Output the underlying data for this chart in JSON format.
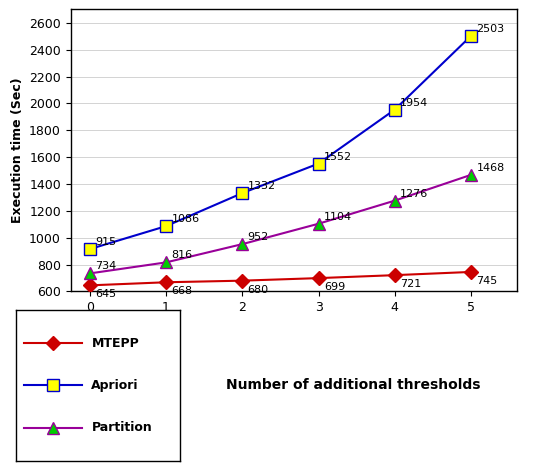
{
  "x": [
    0,
    1,
    2,
    3,
    4,
    5
  ],
  "mtepp": [
    645,
    668,
    680,
    699,
    721,
    745
  ],
  "apriori": [
    915,
    1086,
    1332,
    1552,
    1954,
    2503
  ],
  "partition": [
    734,
    816,
    952,
    1104,
    1276,
    1468
  ],
  "mtepp_labels": [
    "645",
    "668",
    "680",
    "699",
    "721",
    "745"
  ],
  "apriori_labels": [
    "915",
    "1086",
    "1332",
    "1552",
    "1954",
    "2503"
  ],
  "partition_labels": [
    "734",
    "816",
    "952",
    "1104",
    "1276",
    "1468"
  ],
  "mtepp_line_color": "#cc0000",
  "mtepp_marker_facecolor": "#cc0000",
  "apriori_line_color": "#0000cc",
  "apriori_marker_facecolor": "#ffff00",
  "partition_line_color": "#990099",
  "partition_marker_facecolor": "#00cc00",
  "ylabel": "Execution time (Sec)",
  "xlabel": "Number of additional thresholds",
  "ylim_min": 600,
  "ylim_max": 2700,
  "yticks": [
    600,
    800,
    1000,
    1200,
    1400,
    1600,
    1800,
    2000,
    2200,
    2400,
    2600
  ],
  "xticks": [
    0,
    1,
    2,
    3,
    4,
    5
  ],
  "legend_mtepp": "MTEPP",
  "legend_apriori": "Apriori",
  "legend_partition": "Partition"
}
